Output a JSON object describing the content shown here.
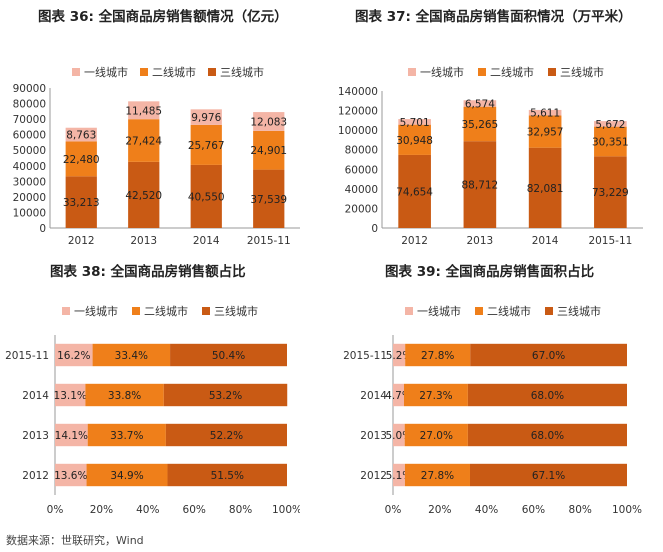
{
  "source": "数据来源：世联研究，Wind",
  "legend_labels": [
    "一线城市",
    "二线城市",
    "三线城市"
  ],
  "colors": {
    "tier1": "#f4b5a6",
    "tier2": "#ef7f1a",
    "tier3": "#c95a14"
  },
  "chart_data": [
    {
      "id": "c36",
      "type": "bar",
      "stacked": true,
      "title": "图表 36: 全国商品房销售额情况（亿元）",
      "categories": [
        "2012",
        "2013",
        "2014",
        "2015-11"
      ],
      "ylim": [
        0,
        90000
      ],
      "yticks": [
        "0",
        "10000",
        "20000",
        "30000",
        "40000",
        "50000",
        "60000",
        "70000",
        "80000",
        "90000"
      ],
      "legend_position": "top-left",
      "series": [
        {
          "name": "三线城市",
          "values": [
            33213,
            42520,
            40550,
            37539
          ]
        },
        {
          "name": "二线城市",
          "values": [
            22480,
            27424,
            25767,
            24901
          ]
        },
        {
          "name": "一线城市",
          "values": [
            8763,
            11485,
            9976,
            12083
          ]
        }
      ],
      "labels": [
        [
          "33,213",
          "42,520",
          "40,550",
          "37,539"
        ],
        [
          "22,480",
          "27,424",
          "25,767",
          "24,901"
        ],
        [
          "8,763",
          "11,485",
          "9,976",
          "12,083"
        ]
      ]
    },
    {
      "id": "c37",
      "type": "bar",
      "stacked": true,
      "title": "图表 37: 全国商品房销售面积情况（万平米）",
      "categories": [
        "2012",
        "2013",
        "2014",
        "2015-11"
      ],
      "ylim": [
        0,
        140000
      ],
      "yticks": [
        "0",
        "20000",
        "40000",
        "60000",
        "80000",
        "100000",
        "120000",
        "140000"
      ],
      "legend_position": "top-left",
      "series": [
        {
          "name": "三线城市",
          "values": [
            74654,
            88712,
            82081,
            73229
          ]
        },
        {
          "name": "二线城市",
          "values": [
            30948,
            35265,
            32957,
            30351
          ]
        },
        {
          "name": "一线城市",
          "values": [
            5701,
            6574,
            5611,
            5672
          ]
        }
      ],
      "labels": [
        [
          "74,654",
          "88,712",
          "82,081",
          "73,229"
        ],
        [
          "30,948",
          "35,265",
          "32,957",
          "30,351"
        ],
        [
          "5,701",
          "6,574",
          "5,611",
          "5,672"
        ]
      ]
    },
    {
      "id": "c38",
      "type": "bar",
      "orientation": "horizontal",
      "stacked": true,
      "percent": true,
      "title": "图表 38: 全国商品房销售额占比",
      "categories": [
        "2015-11",
        "2014",
        "2013",
        "2012"
      ],
      "xlim": [
        0,
        100
      ],
      "xticks": [
        "0%",
        "20%",
        "40%",
        "60%",
        "80%",
        "100%"
      ],
      "legend_position": "top-left",
      "series": [
        {
          "name": "一线城市",
          "values": [
            16.2,
            13.1,
            14.1,
            13.6
          ]
        },
        {
          "name": "二线城市",
          "values": [
            33.4,
            33.8,
            33.7,
            34.9
          ]
        },
        {
          "name": "三线城市",
          "values": [
            50.4,
            53.2,
            52.2,
            51.5
          ]
        }
      ],
      "labels": [
        [
          "16.2%",
          "13.1%",
          "14.1%",
          "13.6%"
        ],
        [
          "33.4%",
          "33.8%",
          "33.7%",
          "34.9%"
        ],
        [
          "50.4%",
          "53.2%",
          "52.2%",
          "51.5%"
        ]
      ]
    },
    {
      "id": "c39",
      "type": "bar",
      "orientation": "horizontal",
      "stacked": true,
      "percent": true,
      "title": "图表 39: 全国商品房销售面积占比",
      "categories": [
        "2015-11",
        "2014",
        "2013",
        "2012"
      ],
      "xlim": [
        0,
        100
      ],
      "xticks": [
        "0%",
        "20%",
        "40%",
        "60%",
        "80%",
        "100%"
      ],
      "legend_position": "top-left",
      "series": [
        {
          "name": "一线城市",
          "values": [
            5.2,
            4.7,
            5.0,
            5.1
          ]
        },
        {
          "name": "二线城市",
          "values": [
            27.8,
            27.3,
            27.0,
            27.8
          ]
        },
        {
          "name": "三线城市",
          "values": [
            67.0,
            68.0,
            68.0,
            67.1
          ]
        }
      ],
      "labels": [
        [
          "5.2%",
          "4.7%",
          "5.0%",
          "5.1%"
        ],
        [
          "27.8%",
          "27.3%",
          "27.0%",
          "27.8%"
        ],
        [
          "67.0%",
          "68.0%",
          "68.0%",
          "67.1%"
        ]
      ]
    }
  ]
}
